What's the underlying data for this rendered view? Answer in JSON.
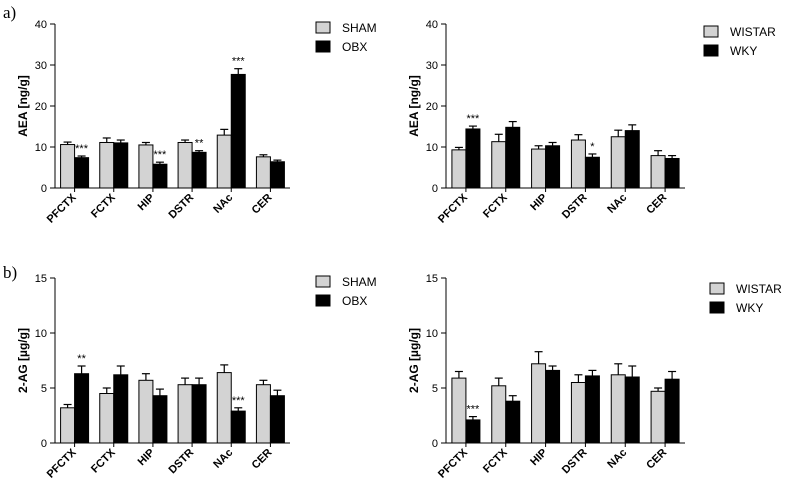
{
  "panel_letters": [
    "a)",
    "b)"
  ],
  "chart_data": [
    {
      "type": "bar",
      "ylabel": "AEA [ng/g]",
      "ylim": [
        0,
        40
      ],
      "yticks": [
        0,
        10,
        20,
        30,
        40
      ],
      "categories": [
        "PFCTX",
        "FCTX",
        "HIP",
        "DSTR",
        "NAc",
        "CER"
      ],
      "legend_position": "top-right",
      "series": [
        {
          "name": "SHAM",
          "color": "#d3d3d3",
          "values": [
            10.6,
            11.1,
            10.5,
            11.1,
            12.9,
            7.6
          ],
          "errors": [
            0.6,
            1.1,
            0.6,
            0.6,
            1.4,
            0.5
          ]
        },
        {
          "name": "OBX",
          "color": "#000000",
          "values": [
            7.4,
            11.0,
            5.8,
            8.7,
            27.7,
            6.4
          ],
          "errors": [
            0.4,
            0.7,
            0.5,
            0.4,
            1.4,
            0.4
          ]
        }
      ],
      "annotations": [
        {
          "category": "PFCTX",
          "series": "OBX",
          "text": "***"
        },
        {
          "category": "HIP",
          "series": "OBX",
          "text": "***"
        },
        {
          "category": "DSTR",
          "series": "OBX",
          "text": "**"
        },
        {
          "category": "NAc",
          "series": "OBX",
          "text": "***"
        }
      ]
    },
    {
      "type": "bar",
      "ylabel": "AEA [ng/g]",
      "ylim": [
        0,
        40
      ],
      "yticks": [
        0,
        10,
        20,
        30,
        40
      ],
      "categories": [
        "PFCTX",
        "FCTX",
        "HIP",
        "DSTR",
        "NAc",
        "CER"
      ],
      "legend_position": "top-right",
      "series": [
        {
          "name": "WISTAR",
          "color": "#d3d3d3",
          "values": [
            9.3,
            11.3,
            9.5,
            11.7,
            12.5,
            7.9
          ],
          "errors": [
            0.6,
            1.8,
            0.8,
            1.3,
            1.6,
            1.2
          ]
        },
        {
          "name": "WKY",
          "color": "#000000",
          "values": [
            14.4,
            14.8,
            10.3,
            7.5,
            14.0,
            7.2
          ],
          "errors": [
            0.7,
            1.4,
            0.8,
            0.8,
            1.4,
            0.7
          ]
        }
      ],
      "annotations": [
        {
          "category": "PFCTX",
          "series": "WKY",
          "text": "***"
        },
        {
          "category": "DSTR",
          "series": "WKY",
          "text": "*"
        }
      ]
    },
    {
      "type": "bar",
      "ylabel": "2-AG [µg/g]",
      "ylim": [
        0,
        15
      ],
      "yticks": [
        0,
        5,
        10,
        15
      ],
      "categories": [
        "PFCTX",
        "FCTX",
        "HIP",
        "DSTR",
        "NAc",
        "CER"
      ],
      "legend_position": "top-right",
      "series": [
        {
          "name": "SHAM",
          "color": "#d3d3d3",
          "values": [
            3.2,
            4.5,
            5.7,
            5.3,
            6.4,
            5.3
          ],
          "errors": [
            0.3,
            0.5,
            0.6,
            0.6,
            0.7,
            0.4
          ]
        },
        {
          "name": "OBX",
          "color": "#000000",
          "values": [
            6.3,
            6.2,
            4.3,
            5.3,
            2.9,
            4.3
          ],
          "errors": [
            0.7,
            0.8,
            0.6,
            0.6,
            0.3,
            0.5
          ]
        }
      ],
      "annotations": [
        {
          "category": "PFCTX",
          "series": "OBX",
          "text": "**"
        },
        {
          "category": "NAc",
          "series": "OBX",
          "text": "***"
        }
      ]
    },
    {
      "type": "bar",
      "ylabel": "2-AG [µg/g]",
      "ylim": [
        0,
        15
      ],
      "yticks": [
        0,
        5,
        10,
        15
      ],
      "categories": [
        "PFCTX",
        "FCTX",
        "HIP",
        "DSTR",
        "NAc",
        "CER"
      ],
      "legend_position": "top-right",
      "series": [
        {
          "name": "WISTAR",
          "color": "#d3d3d3",
          "values": [
            5.9,
            5.2,
            7.2,
            5.5,
            6.2,
            4.7
          ],
          "errors": [
            0.6,
            0.7,
            1.1,
            0.7,
            1.0,
            0.3
          ]
        },
        {
          "name": "WKY",
          "color": "#000000",
          "values": [
            2.1,
            3.8,
            6.6,
            6.1,
            6.0,
            5.8
          ],
          "errors": [
            0.3,
            0.5,
            0.4,
            0.5,
            1.0,
            0.7
          ]
        }
      ],
      "annotations": [
        {
          "category": "PFCTX",
          "series": "WKY",
          "text": "***"
        }
      ]
    }
  ]
}
